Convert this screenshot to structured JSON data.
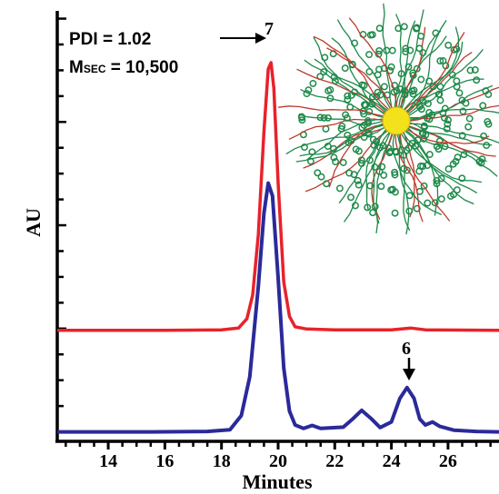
{
  "chart_data": {
    "type": "line",
    "xlabel": "Minutes",
    "ylabel": "AU",
    "xlim": [
      12.2,
      27.8
    ],
    "ylim": [
      0,
      1
    ],
    "x_ticks": [
      "14",
      "16",
      "18",
      "20",
      "22",
      "24",
      "26"
    ],
    "grid": false,
    "series": [
      {
        "color": "#e8222a",
        "points": [
          [
            12.2,
            0.258
          ],
          [
            16,
            0.258
          ],
          [
            18,
            0.259
          ],
          [
            18.6,
            0.263
          ],
          [
            18.9,
            0.285
          ],
          [
            19.1,
            0.34
          ],
          [
            19.3,
            0.48
          ],
          [
            19.5,
            0.72
          ],
          [
            19.65,
            0.865
          ],
          [
            19.75,
            0.88
          ],
          [
            19.85,
            0.82
          ],
          [
            20.0,
            0.6
          ],
          [
            20.2,
            0.37
          ],
          [
            20.4,
            0.29
          ],
          [
            20.6,
            0.266
          ],
          [
            21.0,
            0.261
          ],
          [
            22,
            0.259
          ],
          [
            24.0,
            0.259
          ],
          [
            24.7,
            0.263
          ],
          [
            25.2,
            0.259
          ],
          [
            27.8,
            0.258
          ]
        ]
      },
      {
        "color": "#2a2a9a",
        "points": [
          [
            12.2,
            0.022
          ],
          [
            15.5,
            0.022
          ],
          [
            17.5,
            0.023
          ],
          [
            18.3,
            0.027
          ],
          [
            18.7,
            0.06
          ],
          [
            19.0,
            0.15
          ],
          [
            19.3,
            0.36
          ],
          [
            19.5,
            0.53
          ],
          [
            19.65,
            0.6
          ],
          [
            19.8,
            0.57
          ],
          [
            20.0,
            0.38
          ],
          [
            20.2,
            0.17
          ],
          [
            20.4,
            0.07
          ],
          [
            20.6,
            0.038
          ],
          [
            20.9,
            0.03
          ],
          [
            21.2,
            0.037
          ],
          [
            21.5,
            0.03
          ],
          [
            22.3,
            0.033
          ],
          [
            22.6,
            0.05
          ],
          [
            22.95,
            0.072
          ],
          [
            23.3,
            0.052
          ],
          [
            23.6,
            0.032
          ],
          [
            24.0,
            0.045
          ],
          [
            24.3,
            0.1
          ],
          [
            24.55,
            0.125
          ],
          [
            24.8,
            0.1
          ],
          [
            25.0,
            0.052
          ],
          [
            25.2,
            0.038
          ],
          [
            25.45,
            0.045
          ],
          [
            25.7,
            0.035
          ],
          [
            26.2,
            0.026
          ],
          [
            27.0,
            0.023
          ],
          [
            27.8,
            0.022
          ]
        ]
      }
    ],
    "annotations": {
      "peak_label_top": "7",
      "peak_label_bottom": "6",
      "pdi": "PDI = 1.02",
      "msec_prefix": "M",
      "msec_subscript": "SEC",
      "msec_value": " = 10,500"
    }
  }
}
